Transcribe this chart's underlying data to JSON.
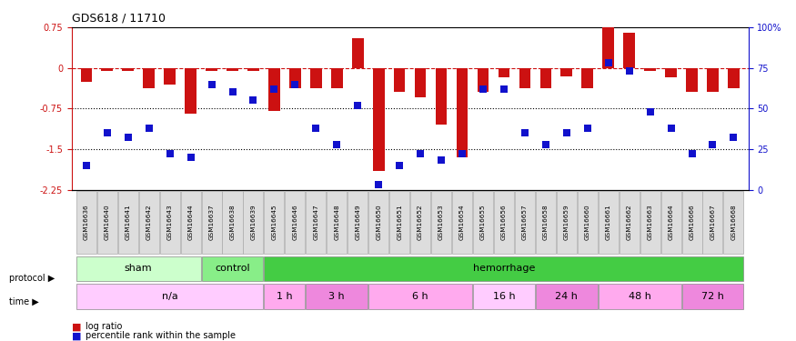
{
  "title": "GDS618 / 11710",
  "samples": [
    "GSM16636",
    "GSM16640",
    "GSM16641",
    "GSM16642",
    "GSM16643",
    "GSM16644",
    "GSM16637",
    "GSM16638",
    "GSM16639",
    "GSM16645",
    "GSM16646",
    "GSM16647",
    "GSM16648",
    "GSM16649",
    "GSM16650",
    "GSM16651",
    "GSM16652",
    "GSM16653",
    "GSM16654",
    "GSM16655",
    "GSM16656",
    "GSM16657",
    "GSM16658",
    "GSM16659",
    "GSM16660",
    "GSM16661",
    "GSM16662",
    "GSM16663",
    "GSM16664",
    "GSM16666",
    "GSM16667",
    "GSM16668"
  ],
  "log_ratio": [
    -0.25,
    -0.05,
    -0.05,
    -0.38,
    -0.3,
    -0.85,
    -0.05,
    -0.05,
    -0.05,
    -0.8,
    -0.38,
    -0.38,
    -0.38,
    0.55,
    -1.9,
    -0.45,
    -0.55,
    -1.05,
    -1.65,
    -0.45,
    -0.18,
    -0.38,
    -0.38,
    -0.15,
    -0.38,
    0.75,
    0.65,
    -0.05,
    -0.18,
    -0.45,
    -0.45,
    -0.38
  ],
  "percentile": [
    15,
    35,
    32,
    38,
    22,
    20,
    65,
    60,
    55,
    62,
    65,
    38,
    28,
    52,
    3,
    15,
    22,
    18,
    22,
    62,
    62,
    35,
    28,
    35,
    38,
    78,
    73,
    48,
    38,
    22,
    28,
    32
  ],
  "ylim_left": [
    0.75,
    -2.25
  ],
  "ylim_right": [
    100,
    0
  ],
  "yticks_left": [
    0.75,
    0,
    -0.75,
    -1.5,
    -2.25
  ],
  "yticks_right": [
    100,
    75,
    50,
    25,
    0
  ],
  "bar_color": "#CC1111",
  "scatter_color": "#1111CC",
  "protocol_groups": [
    {
      "label": "sham",
      "start": 0,
      "end": 5,
      "color": "#CCFFCC"
    },
    {
      "label": "control",
      "start": 6,
      "end": 8,
      "color": "#88EE88"
    },
    {
      "label": "hemorrhage",
      "start": 9,
      "end": 31,
      "color": "#44CC44"
    }
  ],
  "time_groups": [
    {
      "label": "n/a",
      "start": 0,
      "end": 8,
      "color": "#FFCCFF"
    },
    {
      "label": "1 h",
      "start": 9,
      "end": 10,
      "color": "#FFAAEE"
    },
    {
      "label": "3 h",
      "start": 11,
      "end": 13,
      "color": "#EE88DD"
    },
    {
      "label": "6 h",
      "start": 14,
      "end": 18,
      "color": "#FFAAEE"
    },
    {
      "label": "16 h",
      "start": 19,
      "end": 21,
      "color": "#FFCCFF"
    },
    {
      "label": "24 h",
      "start": 22,
      "end": 24,
      "color": "#EE88DD"
    },
    {
      "label": "48 h",
      "start": 25,
      "end": 28,
      "color": "#FFAAEE"
    },
    {
      "label": "72 h",
      "start": 29,
      "end": 31,
      "color": "#EE88DD"
    }
  ]
}
